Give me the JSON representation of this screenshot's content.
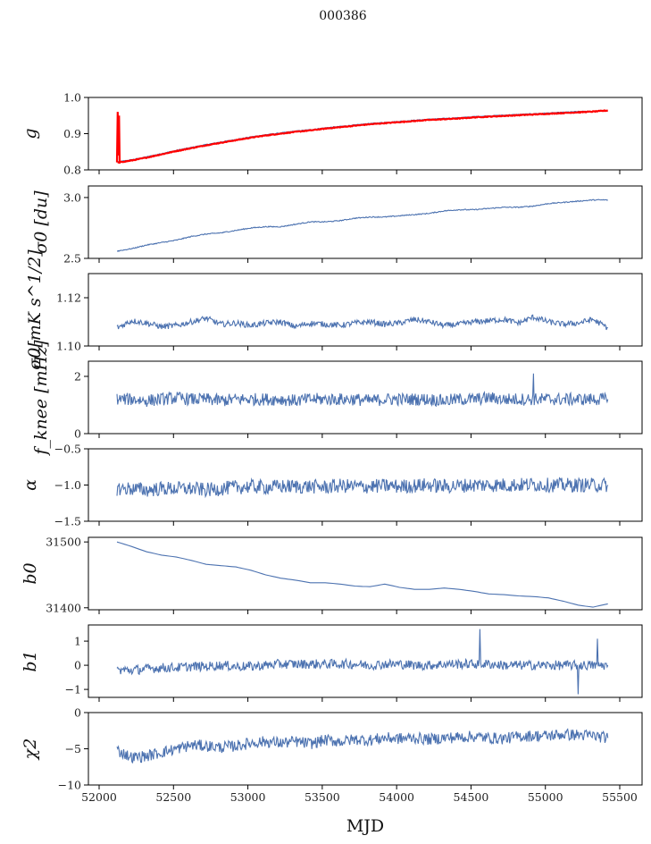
{
  "chart_data": {
    "type": "line",
    "title": "000386",
    "xlabel": "MJD",
    "xlim": [
      51928,
      55650
    ],
    "xticks": [
      52000,
      52500,
      53000,
      53500,
      54000,
      54500,
      55000,
      55500
    ],
    "x": [
      52120,
      52220,
      52320,
      52420,
      52520,
      52620,
      52720,
      52820,
      52920,
      53020,
      53120,
      53220,
      53320,
      53420,
      53520,
      53620,
      53720,
      53820,
      53920,
      54020,
      54120,
      54220,
      54320,
      54420,
      54520,
      54620,
      54720,
      54820,
      54920,
      55020,
      55120,
      55220,
      55320,
      55420
    ],
    "panels": [
      {
        "ylabel": "g",
        "ylim": [
          0.8,
          1.0
        ],
        "yticks": [
          "0.8",
          "0.9",
          "1.0"
        ],
        "ytick_values": [
          0.8,
          0.9,
          1.0
        ],
        "series": [
          {
            "name": "g",
            "color": "#4c72b0",
            "noise": 0.001,
            "values": [
              0.822,
              0.828,
              0.836,
              0.845,
              0.854,
              0.862,
              0.87,
              0.877,
              0.884,
              0.891,
              0.897,
              0.902,
              0.907,
              0.911,
              0.916,
              0.92,
              0.924,
              0.928,
              0.931,
              0.934,
              0.937,
              0.94,
              0.942,
              0.944,
              0.947,
              0.949,
              0.951,
              0.953,
              0.955,
              0.957,
              0.959,
              0.961,
              0.962,
              0.963
            ]
          },
          {
            "name": "g-fit",
            "color": "#ff0000",
            "noise": 0.001,
            "spike_start": 0.96,
            "values": [
              0.82,
              0.826,
              0.834,
              0.843,
              0.852,
              0.86,
              0.868,
              0.875,
              0.882,
              0.889,
              0.895,
              0.9,
              0.905,
              0.909,
              0.914,
              0.918,
              0.922,
              0.926,
              0.929,
              0.932,
              0.935,
              0.938,
              0.94,
              0.942,
              0.945,
              0.947,
              0.949,
              0.951,
              0.953,
              0.955,
              0.957,
              0.959,
              0.961,
              0.964
            ]
          }
        ]
      },
      {
        "ylabel": "σ0 [du]",
        "ylim": [
          2.5,
          3.095
        ],
        "yticks": [
          "2.5",
          "3.0"
        ],
        "ytick_values": [
          2.5,
          3.0
        ],
        "series": [
          {
            "name": "sigma0_du",
            "color": "#4c72b0",
            "noise": 0.004,
            "values": [
              2.56,
              2.58,
              2.61,
              2.63,
              2.65,
              2.68,
              2.7,
              2.71,
              2.73,
              2.75,
              2.76,
              2.76,
              2.78,
              2.8,
              2.8,
              2.81,
              2.83,
              2.84,
              2.84,
              2.85,
              2.86,
              2.87,
              2.89,
              2.9,
              2.9,
              2.91,
              2.92,
              2.92,
              2.93,
              2.95,
              2.96,
              2.97,
              2.98,
              2.98
            ]
          }
        ]
      },
      {
        "ylabel": "σ0[mK s^1/2]",
        "ylim": [
          1.1,
          1.13
        ],
        "yticks": [
          "1.10",
          "1.12"
        ],
        "ytick_values": [
          1.1,
          1.12
        ],
        "series": [
          {
            "name": "sigma0_mK",
            "color": "#4c72b0",
            "noise": 0.0012,
            "values": [
              1.1075,
              1.1105,
              1.1095,
              1.108,
              1.1085,
              1.11,
              1.1115,
              1.109,
              1.1095,
              1.1085,
              1.1095,
              1.11,
              1.108,
              1.1095,
              1.109,
              1.1085,
              1.1095,
              1.11,
              1.109,
              1.1095,
              1.111,
              1.11,
              1.1085,
              1.109,
              1.11,
              1.1105,
              1.111,
              1.1095,
              1.112,
              1.11,
              1.109,
              1.1095,
              1.111,
              1.1075
            ]
          }
        ]
      },
      {
        "ylabel": "f_knee [mHz]",
        "ylim": [
          0,
          2.53
        ],
        "yticks": [
          "0",
          "2"
        ],
        "ytick_values": [
          0,
          2
        ],
        "series": [
          {
            "name": "fknee",
            "color": "#4c72b0",
            "noise": 0.22,
            "spikes": [
              [
                54920,
                2.1
              ]
            ],
            "values": [
              1.2,
              1.2,
              1.15,
              1.2,
              1.25,
              1.2,
              1.2,
              1.15,
              1.2,
              1.2,
              1.2,
              1.2,
              1.15,
              1.2,
              1.2,
              1.2,
              1.2,
              1.15,
              1.2,
              1.2,
              1.2,
              1.2,
              1.15,
              1.2,
              1.2,
              1.25,
              1.2,
              1.2,
              1.2,
              1.2,
              1.2,
              1.2,
              1.2,
              1.2
            ]
          }
        ]
      },
      {
        "ylabel": "α",
        "ylim": [
          -1.5,
          -0.5
        ],
        "yticks": [
          "−1.5",
          "−1.0",
          "−0.5"
        ],
        "ytick_values": [
          -1.5,
          -1.0,
          -0.5
        ],
        "series": [
          {
            "name": "alpha",
            "color": "#4c72b0",
            "noise": 0.1,
            "values": [
              -1.05,
              -1.05,
              -1.07,
              -1.05,
              -1.05,
              -1.05,
              -1.07,
              -1.05,
              -1.03,
              -1.02,
              -1.03,
              -1.02,
              -1.02,
              -1.02,
              -1.03,
              -1.01,
              -1.02,
              -1.02,
              -1.01,
              -1.02,
              -1.01,
              -1.0,
              -1.02,
              -1.01,
              -1.0,
              -1.0,
              -1.0,
              -1.0,
              -0.99,
              -1.0,
              -1.0,
              -1.0,
              -1.0,
              -1.0
            ]
          }
        ]
      },
      {
        "ylabel": "b0",
        "ylim": [
          31397,
          31507
        ],
        "yticks": [
          "31400",
          "31500"
        ],
        "ytick_values": [
          31400,
          31500
        ],
        "series": [
          {
            "name": "b0",
            "color": "#4c72b0",
            "noise": 0,
            "values": [
              31500,
              31493,
              31485,
              31480,
              31477,
              31472,
              31466,
              31464,
              31462,
              31457,
              31450,
              31445,
              31442,
              31438,
              31438,
              31436,
              31433,
              31432,
              31436,
              31431,
              31428,
              31428,
              31430,
              31428,
              31425,
              31421,
              31420,
              31418,
              31417,
              31415,
              31410,
              31404,
              31401,
              31406
            ]
          }
        ]
      },
      {
        "ylabel": "b1",
        "ylim": [
          -1.33,
          1.67
        ],
        "yticks": [
          "−1",
          "0",
          "1"
        ],
        "ytick_values": [
          -1,
          0,
          1
        ],
        "series": [
          {
            "name": "b1",
            "color": "#4c72b0",
            "noise": 0.2,
            "spikes": [
              [
                54560,
                1.5
              ],
              [
                55220,
                -1.2
              ],
              [
                55350,
                1.1
              ]
            ],
            "values": [
              -0.2,
              -0.2,
              -0.15,
              -0.1,
              -0.1,
              -0.05,
              -0.05,
              0,
              -0.05,
              -0.05,
              0,
              0.05,
              0.05,
              0.05,
              0.05,
              0.05,
              0.05,
              0,
              0.05,
              0.05,
              0,
              0,
              0.05,
              0.05,
              0.05,
              0.05,
              0,
              0,
              0,
              0,
              0,
              0,
              0,
              0
            ]
          }
        ]
      },
      {
        "ylabel": "χ2",
        "ylim": [
          -10,
          0
        ],
        "yticks": [
          "−10",
          "−5",
          "0"
        ],
        "ytick_values": [
          -10,
          -5,
          0
        ],
        "series": [
          {
            "name": "chi2",
            "color": "#4c72b0",
            "noise": 0.8,
            "values": [
              -5.2,
              -6.2,
              -6.0,
              -5.5,
              -5.0,
              -4.5,
              -4.6,
              -4.8,
              -4.6,
              -4.2,
              -4.0,
              -4.2,
              -4.0,
              -4.3,
              -3.8,
              -4.0,
              -3.7,
              -3.8,
              -3.5,
              -3.6,
              -3.5,
              -3.7,
              -3.5,
              -3.4,
              -3.3,
              -3.5,
              -3.6,
              -3.3,
              -3.2,
              -3.2,
              -3.0,
              -3.1,
              -3.2,
              -3.5
            ]
          }
        ]
      }
    ]
  }
}
